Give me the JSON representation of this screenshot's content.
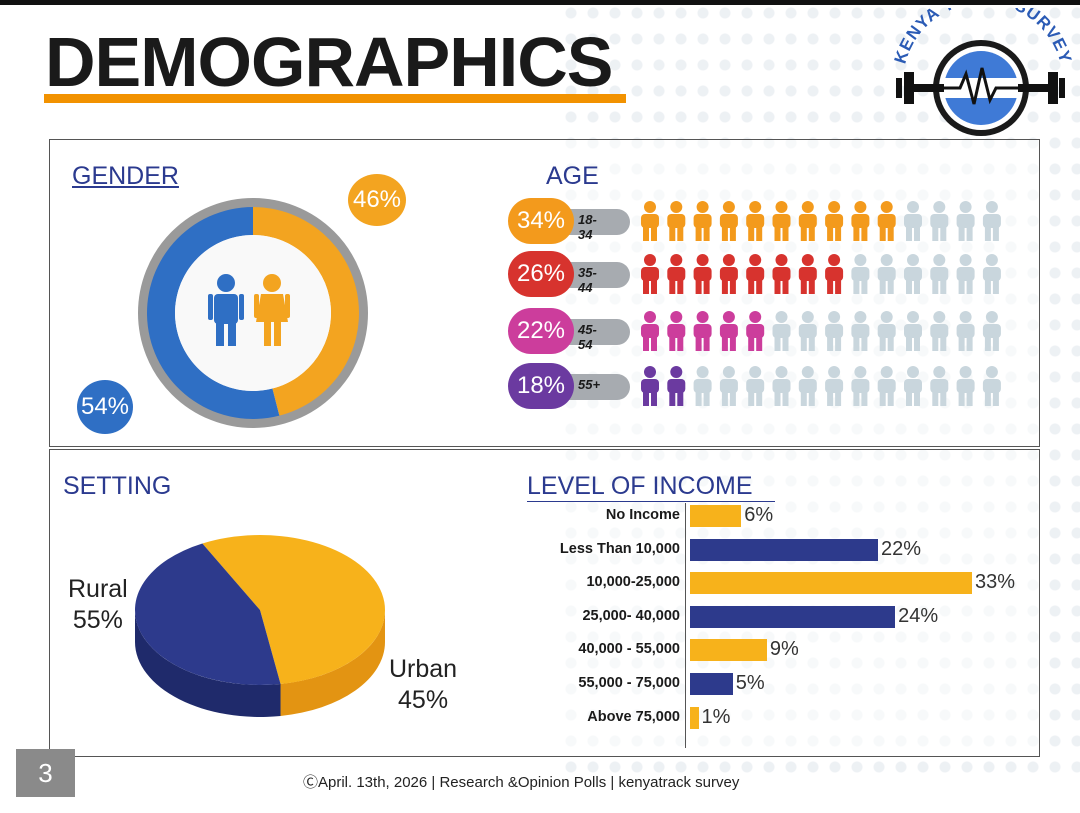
{
  "page": {
    "title": "DEMOGRAPHICS",
    "logo_text": "KENYA TRACK SURVEY",
    "slide_number": "3",
    "footer": "ⒸApril. 13th, 2026 | Research &Opinion Polls | kenyatrack survey"
  },
  "colors": {
    "orange": "#f29200",
    "navy": "#2b3a8f",
    "gold": "#f7b21b",
    "blue": "#2d3a8c",
    "grey": "#c9d6dd"
  },
  "chart_data": [
    {
      "type": "pie",
      "title": "GENDER",
      "categories": [
        "Male",
        "Female"
      ],
      "values": [
        54,
        46
      ],
      "labels": [
        "54%",
        "46%"
      ],
      "series_colors": [
        "#2f6fc4",
        "#f3a420"
      ]
    },
    {
      "type": "bar",
      "title": "AGE",
      "categories": [
        "18-34",
        "35-44",
        "45-54",
        "55+"
      ],
      "values": [
        34,
        26,
        22,
        18
      ],
      "labels": [
        "34%",
        "26%",
        "22%",
        "18%"
      ],
      "series_colors": [
        "#f39a1c",
        "#d7332e",
        "#cc3d9c",
        "#6b3aa0"
      ],
      "icons_per_row": 14,
      "filled_icons": [
        10,
        8,
        5,
        2
      ]
    },
    {
      "type": "pie",
      "title": "SETTING",
      "categories": [
        "Rural",
        "Urban"
      ],
      "values": [
        55,
        45
      ],
      "labels": [
        "55%",
        "45%"
      ],
      "series_colors": [
        "#f7b21b",
        "#2d3a8c"
      ]
    },
    {
      "type": "bar",
      "title": "LEVEL OF INCOME",
      "orientation": "horizontal",
      "categories": [
        "No Income",
        "Less Than 10,000",
        "10,000-25,000",
        "25,000- 40,000",
        "40,000 - 55,000",
        "55,000 - 75,000",
        "Above 75,000"
      ],
      "values": [
        6,
        22,
        33,
        24,
        9,
        5,
        1
      ],
      "labels": [
        "6%",
        "22%",
        "33%",
        "24%",
        "9%",
        "5%",
        "1%"
      ],
      "bar_colors": [
        "#f7b21b",
        "#2d3a8c",
        "#f7b21b",
        "#2d3a8c",
        "#f7b21b",
        "#2d3a8c",
        "#f7b21b"
      ],
      "xlim": [
        0,
        33
      ]
    }
  ]
}
